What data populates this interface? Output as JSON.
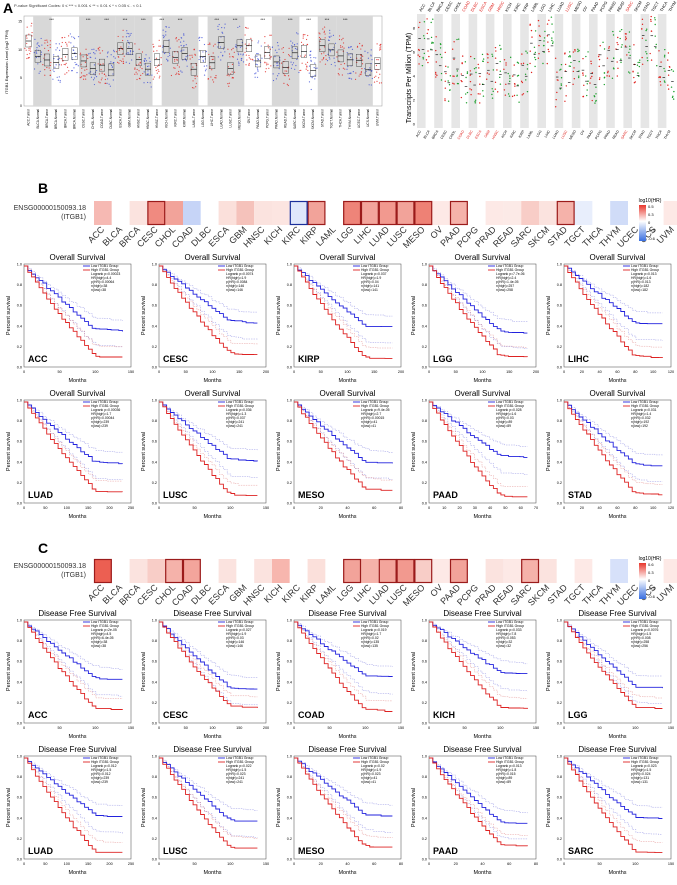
{
  "panels": {
    "A": {
      "letter": "A",
      "left_legend": "P-value Significant Codes: 0 ≤ *** < 0.001 ≤ ** < 0.01 ≤ * < 0.05 ≤ . < 0.1",
      "left_ylabel": "ITGB1 Expression Level (log2 TPM)",
      "right_ylabel": "Transcripts Per Million (TPM)"
    },
    "B": {
      "letter": "B",
      "gene_label_1": "ENSG00000150093.18",
      "gene_label_2": "(ITGB1)",
      "legend_title": "log10(HR)",
      "legend_ticks": [
        "0.5",
        "0.3",
        "0",
        "-0.3",
        "-0.6"
      ]
    },
    "C": {
      "letter": "C",
      "gene_label_1": "ENSG00000150093.18",
      "gene_label_2": "(ITGB1)",
      "legend_title": "log10(HR)",
      "legend_ticks": [
        "0.6",
        "0.3",
        "0",
        "-0.3",
        "-0.6"
      ]
    }
  },
  "cancer_types": [
    "ACC",
    "BLCA",
    "BRCA",
    "CESC",
    "CHOL",
    "COAD",
    "DLBC",
    "ESCA",
    "GBM",
    "HNSC",
    "KICH",
    "KIRC",
    "KIRP",
    "LAML",
    "LGG",
    "LIHC",
    "LUAD",
    "LUSC",
    "MESO",
    "OV",
    "PAAD",
    "PCPG",
    "PRAD",
    "READ",
    "SARC",
    "SKCM",
    "STAD",
    "TGCT",
    "THCA",
    "THYM",
    "UCEC",
    "UCS",
    "UVM"
  ],
  "heatmap_B": {
    "colors": [
      "#f6b9b3",
      "#ffffff",
      "#fbe3df",
      "#f08a80",
      "#f2a39a",
      "#c6d4f7",
      "#ffffff",
      "#fbe0db",
      "#f5c2bb",
      "#fbe3df",
      "#fce5e1",
      "#dfe7fb",
      "#f2a39a",
      "#ffffff",
      "#ee8479",
      "#f3a59c",
      "#f2998f",
      "#f2a39a",
      "#ee8175",
      "#fde9e6",
      "#f5b2aa",
      "#ffffff",
      "#fde9e6",
      "#fceae7",
      "#f8cdc7",
      "#fbe3df",
      "#f5b2aa",
      "#e8eefc",
      "#ffffff",
      "#d0dcf8",
      "#ffffff",
      "#ffffff",
      "#fde9e6"
    ],
    "boxed": [
      3,
      12,
      14,
      15,
      16,
      17,
      18,
      20,
      26
    ],
    "boxed_blue": [
      11
    ]
  },
  "heatmap_C": {
    "colors": [
      "#ec5f52",
      "#ffffff",
      "#fbe3df",
      "#f8cdc7",
      "#f5b2aa",
      "#f3a59c",
      "#ffffff",
      "#fbe3df",
      "#ffffff",
      "#fbe3df",
      "#f7b6ae",
      "#ffffff",
      "#fbe0db",
      "#ffffff",
      "#f2a39a",
      "#f5b2aa",
      "#f3a59c",
      "#f2998f",
      "#f8cdc7",
      "#fde9e6",
      "#f2a39a",
      "#ffffff",
      "#fbe3df",
      "#fde9e6",
      "#f5b2aa",
      "#fbe3df",
      "#ffffff",
      "#fde9e6",
      "#ffffff",
      "#d7e1fa",
      "#ffffff",
      "#ffffff",
      "#fde9e6"
    ],
    "boxed": [
      0,
      4,
      5,
      14,
      16,
      17,
      18,
      20,
      24
    ],
    "boxed_blue": []
  },
  "os_plots": [
    {
      "title": "Overall Survival",
      "cancer": "ACC",
      "xlabel": "Months",
      "ylabel": "Percent survival",
      "legend": [
        "Low ITGB1 Group",
        "High ITGB1 Group",
        "Logrank p=0.00023",
        "HR(high)=4.4",
        "p(HR)=0.00064",
        "n(high)=38",
        "n(low)=38"
      ],
      "xticks": [
        "0",
        "50",
        "100",
        "150"
      ],
      "yticks": [
        "0.0",
        "0.2",
        "0.4",
        "0.6",
        "0.8",
        "1.0"
      ]
    },
    {
      "title": "Overall Survival",
      "cancer": "CESC",
      "xlabel": "Months",
      "ylabel": "Percent survival",
      "legend": [
        "Low ITGB1 Group",
        "High ITGB1 Group",
        "Logrank p=0.0074",
        "HR(high)=1.9",
        "p(HR)=0.0084",
        "n(high)=146",
        "n(low)=146"
      ],
      "xticks": [
        "0",
        "50",
        "100",
        "150",
        "200"
      ],
      "yticks": [
        "0.0",
        "0.2",
        "0.4",
        "0.6",
        "0.8",
        "1.0"
      ]
    },
    {
      "title": "Overall Survival",
      "cancer": "KIRP",
      "xlabel": "Months",
      "ylabel": "Percent survival",
      "legend": [
        "Low ITGB1 Group",
        "High ITGB1 Group",
        "Logrank p=0.037",
        "HR(high)=1.9",
        "p(HR)=0.04",
        "n(high)=141",
        "n(low)=141"
      ],
      "xticks": [
        "0",
        "50",
        "100",
        "150",
        "200"
      ],
      "yticks": [
        "0.0",
        "0.2",
        "0.4",
        "0.6",
        "0.8",
        "1.0"
      ]
    },
    {
      "title": "Overall Survival",
      "cancer": "LGG",
      "xlabel": "Months",
      "ylabel": "Percent survival",
      "legend": [
        "Low ITGB1 Group",
        "High ITGB1 Group",
        "Logrank p=7.7e-06",
        "HR(high)=2.4",
        "p(HR)=1.4e-05",
        "n(high)=257",
        "n(low)=258"
      ],
      "xticks": [
        "0",
        "50",
        "100",
        "150",
        "200"
      ],
      "yticks": [
        "0.0",
        "0.2",
        "0.4",
        "0.6",
        "0.8",
        "1.0"
      ]
    },
    {
      "title": "Overall Survival",
      "cancer": "LIHC",
      "xlabel": "Months",
      "ylabel": "Percent survival",
      "legend": [
        "Low ITGB1 Group",
        "High ITGB1 Group",
        "Logrank p=0.013",
        "HR(high)=1.6",
        "p(HR)=0.013",
        "n(high)=182",
        "n(low)=182"
      ],
      "xticks": [
        "0",
        "20",
        "40",
        "60",
        "80",
        "100",
        "120"
      ],
      "yticks": [
        "0.0",
        "0.2",
        "0.4",
        "0.6",
        "0.8",
        "1.0"
      ]
    },
    {
      "title": "Overall Survival",
      "cancer": "LUAD",
      "xlabel": "Months",
      "ylabel": "Percent survival",
      "legend": [
        "Low ITGB1 Group",
        "High ITGB1 Group",
        "Logrank p=0.00036",
        "HR(high)=1.7",
        "p(HR)=0.00044",
        "n(high)=239",
        "n(low)=239"
      ],
      "xticks": [
        "0",
        "50",
        "100",
        "150",
        "200",
        "250"
      ],
      "yticks": [
        "0.0",
        "0.2",
        "0.4",
        "0.6",
        "0.8",
        "1.0"
      ]
    },
    {
      "title": "Overall Survival",
      "cancer": "LUSC",
      "xlabel": "Months",
      "ylabel": "Percent survival",
      "legend": [
        "Low ITGB1 Group",
        "High ITGB1 Group",
        "Logrank p=0.036",
        "HR(high)=1.3",
        "p(HR)=0.037",
        "n(high)=241",
        "n(low)=241"
      ],
      "xticks": [
        "0",
        "50",
        "100",
        "150"
      ],
      "yticks": [
        "0.0",
        "0.2",
        "0.4",
        "0.6",
        "0.8",
        "1.0"
      ]
    },
    {
      "title": "Overall Survival",
      "cancer": "MESO",
      "xlabel": "Months",
      "ylabel": "Percent survival",
      "legend": [
        "Low ITGB1 Group",
        "High ITGB1 Group",
        "Logrank p=9.4e-05",
        "HR(high)=2.7",
        "p(HR)=0.00015",
        "n(high)=41",
        "n(low)=41"
      ],
      "xticks": [
        "0",
        "20",
        "40",
        "60",
        "80"
      ],
      "yticks": [
        "0.0",
        "0.2",
        "0.4",
        "0.6",
        "0.8",
        "1.0"
      ]
    },
    {
      "title": "Overall Survival",
      "cancer": "PAAD",
      "xlabel": "Months",
      "ylabel": "Percent survival",
      "legend": [
        "Low ITGB1 Group",
        "High ITGB1 Group",
        "Logrank p=0.028",
        "HR(high)=1.6",
        "p(HR)=0.03",
        "n(high)=89",
        "n(low)=89"
      ],
      "xticks": [
        "0",
        "10",
        "20",
        "30",
        "40",
        "50",
        "60",
        "70"
      ],
      "yticks": [
        "0.0",
        "0.2",
        "0.4",
        "0.6",
        "0.8",
        "1.0"
      ]
    },
    {
      "title": "Overall Survival",
      "cancer": "STAD",
      "xlabel": "Months",
      "ylabel": "Percent survival",
      "legend": [
        "Low ITGB1 Group",
        "High ITGB1 Group",
        "Logrank p=0.031",
        "HR(high)=1.4",
        "p(HR)=0.032",
        "n(high)=192",
        "n(low)=192"
      ],
      "xticks": [
        "0",
        "20",
        "40",
        "60",
        "80",
        "100",
        "120"
      ],
      "yticks": [
        "0.0",
        "0.2",
        "0.4",
        "0.6",
        "0.8",
        "1.0"
      ]
    }
  ],
  "dfs_plots": [
    {
      "title": "Disease Free Survival",
      "cancer": "ACC",
      "xlabel": "Months",
      "ylabel": "Percent survival",
      "legend": [
        "Low ITGB1 Group",
        "High ITGB1 Group",
        "Logrank p=2e-05",
        "HR(high)=4.5",
        "p(HR)=6.4e-05",
        "n(high)=38",
        "n(low)=38"
      ],
      "xticks": [
        "0",
        "50",
        "100",
        "150"
      ],
      "yticks": [
        "0.0",
        "0.2",
        "0.4",
        "0.6",
        "0.8",
        "1.0"
      ]
    },
    {
      "title": "Disease Free Survival",
      "cancer": "CESC",
      "xlabel": "Months",
      "ylabel": "Percent survival",
      "legend": [
        "Low ITGB1 Group",
        "High ITGB1 Group",
        "Logrank p=0.027",
        "HR(high)=1.9",
        "p(HR)=0.03",
        "n(high)=146",
        "n(low)=146"
      ],
      "xticks": [
        "0",
        "50",
        "100",
        "150",
        "200"
      ],
      "yticks": [
        "0.0",
        "0.2",
        "0.4",
        "0.6",
        "0.8",
        "1.0"
      ]
    },
    {
      "title": "Disease Free Survival",
      "cancer": "COAD",
      "xlabel": "Months",
      "ylabel": "Percent survival",
      "legend": [
        "Low ITGB1 Group",
        "High ITGB1 Group",
        "Logrank p=0.019",
        "HR(high)=1.7",
        "p(HR)=0.02",
        "n(high)=135",
        "n(low)=135"
      ],
      "xticks": [
        "0",
        "50",
        "100",
        "150"
      ],
      "yticks": [
        "0.0",
        "0.2",
        "0.4",
        "0.6",
        "0.8",
        "1.0"
      ]
    },
    {
      "title": "Disease Free Survival",
      "cancer": "KICH",
      "xlabel": "Months",
      "ylabel": "Percent survival",
      "legend": [
        "Low ITGB1 Group",
        "High ITGB1 Group",
        "Logrank p=0.033",
        "HR(high)=7.8",
        "p(HR)=0.053",
        "n(high)=32",
        "n(low)=32"
      ],
      "xticks": [
        "0",
        "50",
        "100",
        "150"
      ],
      "yticks": [
        "0.0",
        "0.2",
        "0.4",
        "0.6",
        "0.8",
        "1.0"
      ]
    },
    {
      "title": "Disease Free Survival",
      "cancer": "LGG",
      "xlabel": "Months",
      "ylabel": "Percent survival",
      "legend": [
        "Low ITGB1 Group",
        "High ITGB1 Group",
        "Logrank p=0.0076",
        "HR(high)=1.5",
        "p(HR)=0.008",
        "n(high)=258",
        "n(low)=256"
      ],
      "xticks": [
        "0",
        "50",
        "100",
        "150"
      ],
      "yticks": [
        "0.0",
        "0.2",
        "0.4",
        "0.6",
        "0.8",
        "1.0"
      ]
    },
    {
      "title": "Disease Free Survival",
      "cancer": "LUAD",
      "xlabel": "Months",
      "ylabel": "Percent survival",
      "legend": [
        "Low ITGB1 Group",
        "High ITGB1 Group",
        "Logrank p=0.012",
        "HR(high)=1.5",
        "p(HR)=0.012",
        "n(high)=239",
        "n(low)=239"
      ],
      "xticks": [
        "0",
        "50",
        "100",
        "150",
        "200",
        "250"
      ],
      "yticks": [
        "0.0",
        "0.2",
        "0.4",
        "0.6",
        "0.8",
        "1.0"
      ]
    },
    {
      "title": "Disease Free Survival",
      "cancer": "LUSC",
      "xlabel": "Months",
      "ylabel": "Percent survival",
      "legend": [
        "Low ITGB1 Group",
        "High ITGB1 Group",
        "Logrank p=0.022",
        "HR(high)=1.5",
        "p(HR)=0.023",
        "n(high)=241",
        "n(low)=241"
      ],
      "xticks": [
        "0",
        "50",
        "100",
        "150"
      ],
      "yticks": [
        "0.0",
        "0.2",
        "0.4",
        "0.6",
        "0.8",
        "1.0"
      ]
    },
    {
      "title": "Disease Free Survival",
      "cancer": "MESO",
      "xlabel": "Months",
      "ylabel": "Percent survival",
      "legend": [
        "Low ITGB1 Group",
        "High ITGB1 Group",
        "Logrank p=0.02",
        "HR(high)=1.9",
        "p(HR)=0.023",
        "n(high)=41",
        "n(low)=41"
      ],
      "xticks": [
        "0",
        "20",
        "40",
        "60",
        "80"
      ],
      "yticks": [
        "0.0",
        "0.2",
        "0.4",
        "0.6",
        "0.8",
        "1.0"
      ]
    },
    {
      "title": "Disease Free Survival",
      "cancer": "PAAD",
      "xlabel": "Months",
      "ylabel": "Percent survival",
      "legend": [
        "Low ITGB1 Group",
        "High ITGB1 Group",
        "Logrank p=0.013",
        "HR(high)=1.8",
        "p(HR)=0.015",
        "n(high)=89",
        "n(low)=89"
      ],
      "xticks": [
        "0",
        "20",
        "40",
        "60",
        "80"
      ],
      "yticks": [
        "0.0",
        "0.2",
        "0.4",
        "0.6",
        "0.8",
        "1.0"
      ]
    },
    {
      "title": "Disease Free Survival",
      "cancer": "SARC",
      "xlabel": "Months",
      "ylabel": "Percent survival",
      "legend": [
        "Low ITGB1 Group",
        "High ITGB1 Group",
        "Logrank p=0.023",
        "HR(high)=1.5",
        "p(HR)=0.024",
        "n(high)=131",
        "n(low)=131"
      ],
      "xticks": [
        "0",
        "50",
        "100",
        "150"
      ],
      "yticks": [
        "0.0",
        "0.2",
        "0.4",
        "0.6",
        "0.8",
        "1.0"
      ]
    }
  ]
}
